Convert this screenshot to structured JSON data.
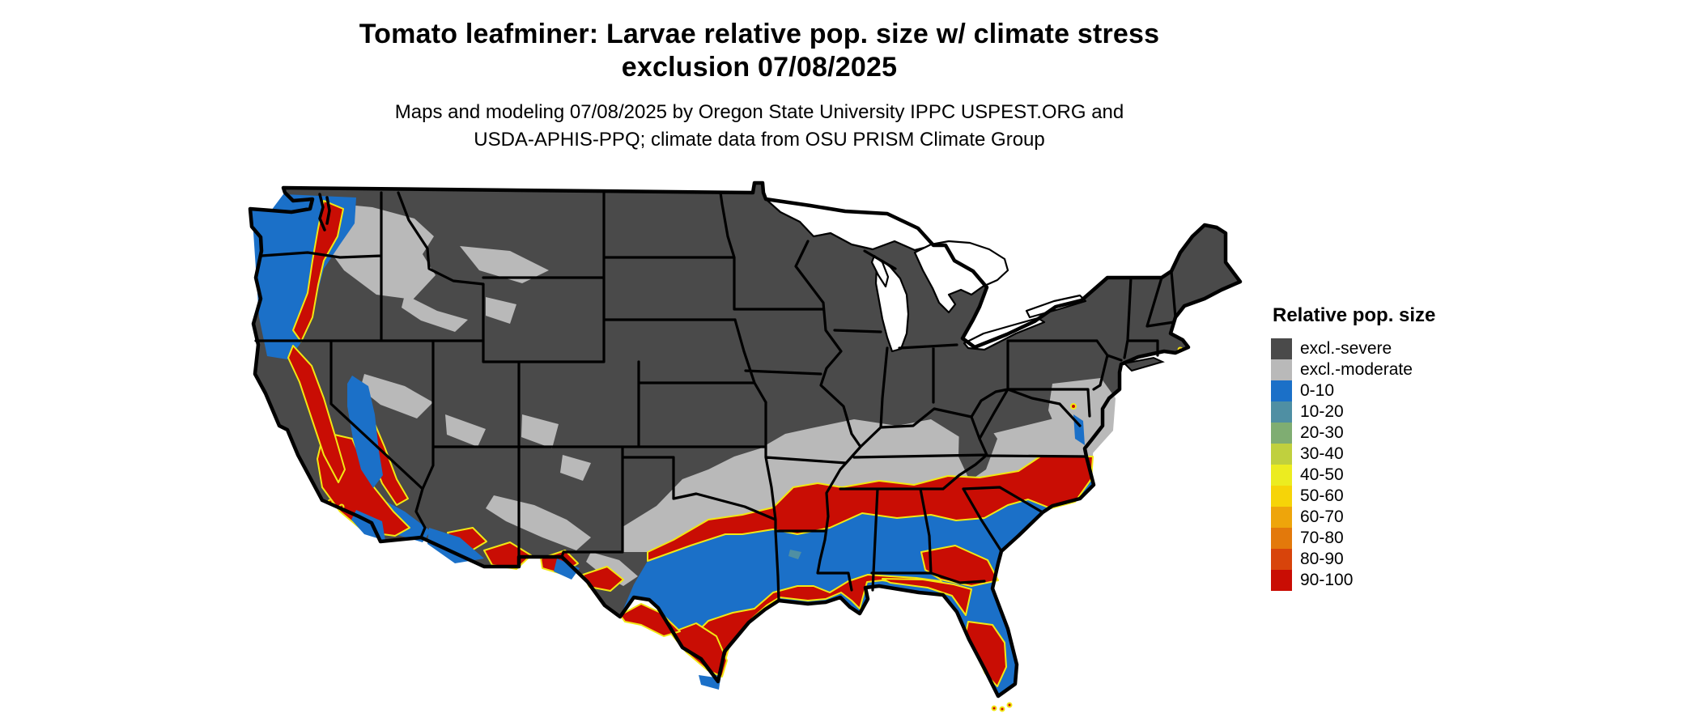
{
  "header": {
    "title_line1": "Tomato leafminer: Larvae relative pop. size w/ climate stress",
    "title_line2": "exclusion 07/08/2025",
    "subtitle_line1": "Maps and modeling 07/08/2025 by Oregon State University IPPC USPEST.ORG and",
    "subtitle_line2": "USDA-APHIS-PPQ; climate data from OSU PRISM Climate Group"
  },
  "legend": {
    "title": "Relative pop. size",
    "items": [
      {
        "label": "excl.-severe",
        "color": "#4a4a4a"
      },
      {
        "label": "excl.-moderate",
        "color": "#b9b9b9"
      },
      {
        "label": "0-10",
        "color": "#1b70c8"
      },
      {
        "label": "10-20",
        "color": "#4f8fa3"
      },
      {
        "label": "20-30",
        "color": "#7fad72"
      },
      {
        "label": "30-40",
        "color": "#c0d03e"
      },
      {
        "label": "40-50",
        "color": "#ecec20"
      },
      {
        "label": "50-60",
        "color": "#f6d408"
      },
      {
        "label": "60-70",
        "color": "#eea50b"
      },
      {
        "label": "70-80",
        "color": "#e3790b"
      },
      {
        "label": "80-90",
        "color": "#d8440b"
      },
      {
        "label": "90-100",
        "color": "#c90d04"
      }
    ]
  },
  "map": {
    "colors": {
      "background": "#ffffff",
      "border": "#000000",
      "lake": "#ffffff",
      "excl_severe": "#4a4a4a",
      "excl_moderate": "#b9b9b9",
      "pop_0_10": "#1b70c8",
      "pop_10_20": "#4f8fa3",
      "pop_90_100": "#c90d04",
      "yellow_fringe": "#f2e713"
    }
  }
}
